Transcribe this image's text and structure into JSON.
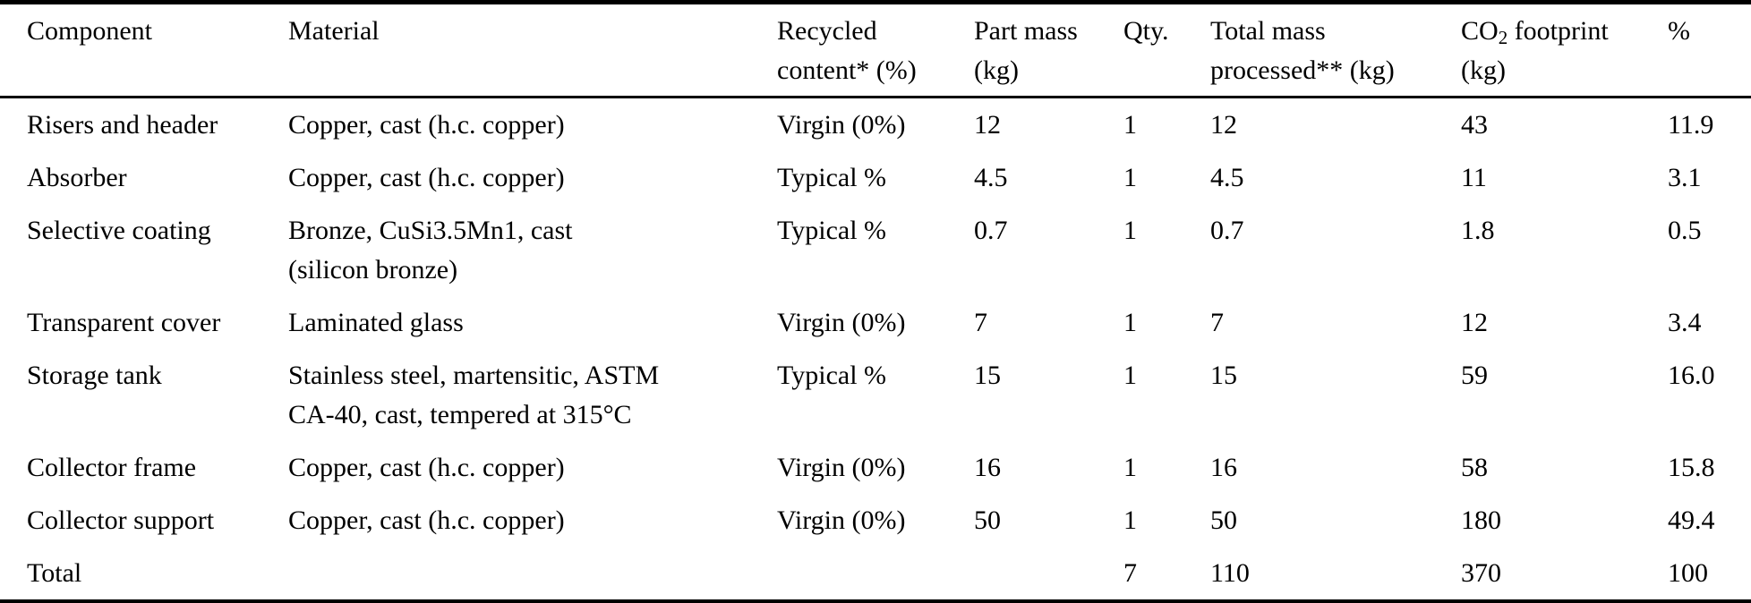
{
  "table": {
    "kind": "bill-of-materials",
    "columns": [
      {
        "key": "component",
        "line1": "Component",
        "line2": ""
      },
      {
        "key": "material",
        "line1": "Material",
        "line2": ""
      },
      {
        "key": "recycled",
        "line1": "Recycled",
        "line2": "content* (%)"
      },
      {
        "key": "part_mass",
        "line1": "Part mass",
        "line2": "(kg)"
      },
      {
        "key": "qty",
        "line1": "Qty.",
        "line2": ""
      },
      {
        "key": "total_mass",
        "line1": "Total mass",
        "line2": "processed** (kg)"
      },
      {
        "key": "co2",
        "line1_base": "CO",
        "line1_sub": "2",
        "line1_rest": " footprint",
        "line2": "(kg)"
      },
      {
        "key": "pct",
        "line1": "%",
        "line2": ""
      }
    ],
    "rows": [
      {
        "component": "Risers and header",
        "material": "Copper, cast (h.c. copper)",
        "recycled": "Virgin (0%)",
        "part_mass": "12",
        "qty": "1",
        "total_mass": "12",
        "co2": "43",
        "pct": "11.9"
      },
      {
        "component": "Absorber",
        "material": "Copper, cast (h.c. copper)",
        "recycled": "Typical %",
        "part_mass": "4.5",
        "qty": "1",
        "total_mass": "4.5",
        "co2": "11",
        "pct": "3.1"
      },
      {
        "component": "Selective coating",
        "material": "Bronze, CuSi3.5Mn1, cast\n(silicon bronze)",
        "recycled": "Typical %",
        "part_mass": "0.7",
        "qty": "1",
        "total_mass": "0.7",
        "co2": "1.8",
        "pct": "0.5"
      },
      {
        "component": "Transparent cover",
        "material": "Laminated glass",
        "recycled": "Virgin (0%)",
        "part_mass": "7",
        "qty": "1",
        "total_mass": "7",
        "co2": "12",
        "pct": "3.4"
      },
      {
        "component": "Storage tank",
        "material": "Stainless steel, martensitic, ASTM\nCA-40, cast, tempered at 315°C",
        "recycled": "Typical %",
        "part_mass": "15",
        "qty": "1",
        "total_mass": "15",
        "co2": "59",
        "pct": "16.0"
      },
      {
        "component": "Collector frame",
        "material": "Copper, cast (h.c. copper)",
        "recycled": "Virgin (0%)",
        "part_mass": "16",
        "qty": "1",
        "total_mass": "16",
        "co2": "58",
        "pct": "15.8"
      },
      {
        "component": "Collector support",
        "material": "Copper, cast (h.c. copper)",
        "recycled": "Virgin (0%)",
        "part_mass": "50",
        "qty": "1",
        "total_mass": "50",
        "co2": "180",
        "pct": "49.4"
      },
      {
        "component": "Total",
        "material": "",
        "recycled": "",
        "part_mass": "",
        "qty": "7",
        "total_mass": "110",
        "co2": "370",
        "pct": "100"
      }
    ],
    "colors": {
      "text": "#000000",
      "background": "#ffffff",
      "rule": "#000000"
    }
  }
}
